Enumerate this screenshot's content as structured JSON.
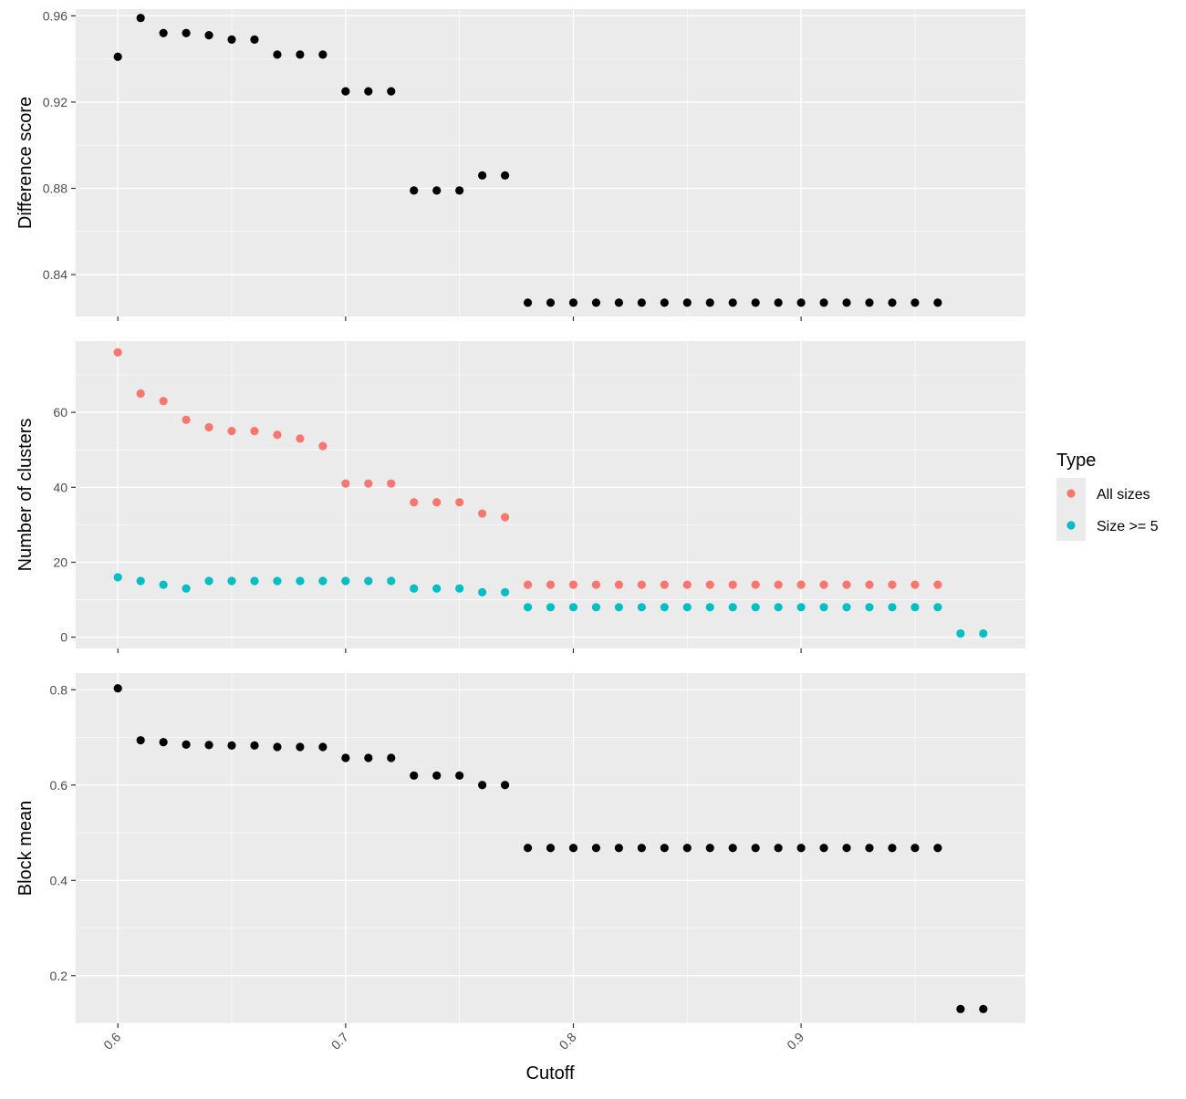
{
  "chart_data": [
    {
      "type": "scatter",
      "panel": "top",
      "ylabel": "Difference score",
      "xlabel": "",
      "x_ticks": [
        0.6,
        0.7,
        0.8,
        0.9
      ],
      "x_tick_labels": [
        "0.6",
        "0.7",
        "0.8",
        "0.9"
      ],
      "show_x_tick_labels": false,
      "xlim": [
        0.5815,
        0.9985
      ],
      "ylim": [
        0.8206,
        0.9631
      ],
      "y_ticks": [
        0.84,
        0.88,
        0.92,
        0.96
      ],
      "y_tick_labels": [
        "0.84",
        "0.88",
        "0.92",
        "0.96"
      ],
      "grid": true,
      "series": [
        {
          "color": "#000000",
          "x": [
            0.6,
            0.61,
            0.62,
            0.63,
            0.64,
            0.65,
            0.66,
            0.67,
            0.68,
            0.69,
            0.7,
            0.71,
            0.72,
            0.73,
            0.74,
            0.75,
            0.76,
            0.77,
            0.78,
            0.79,
            0.8,
            0.81,
            0.82,
            0.83,
            0.84,
            0.85,
            0.86,
            0.87,
            0.88,
            0.89,
            0.9,
            0.91,
            0.92,
            0.93,
            0.94,
            0.95,
            0.96
          ],
          "y": [
            0.941,
            0.959,
            0.952,
            0.952,
            0.951,
            0.949,
            0.949,
            0.942,
            0.942,
            0.942,
            0.925,
            0.925,
            0.925,
            0.879,
            0.879,
            0.879,
            0.886,
            0.886,
            0.827,
            0.827,
            0.827,
            0.827,
            0.827,
            0.827,
            0.827,
            0.827,
            0.827,
            0.827,
            0.827,
            0.827,
            0.827,
            0.827,
            0.827,
            0.827,
            0.827,
            0.827,
            0.827
          ]
        }
      ]
    },
    {
      "type": "scatter",
      "panel": "middle",
      "ylabel": "Number of clusters",
      "xlabel": "",
      "x_ticks": [
        0.6,
        0.7,
        0.8,
        0.9
      ],
      "x_tick_labels": [
        "0.6",
        "0.7",
        "0.8",
        "0.9"
      ],
      "show_x_tick_labels": false,
      "xlim": [
        0.5815,
        0.9985
      ],
      "ylim": [
        -3,
        79
      ],
      "y_ticks": [
        0,
        20,
        40,
        60
      ],
      "y_tick_labels": [
        "0",
        "20",
        "40",
        "60"
      ],
      "grid": true,
      "series": [
        {
          "name": "All sizes",
          "color": "#F8766D",
          "x": [
            0.6,
            0.61,
            0.62,
            0.63,
            0.64,
            0.65,
            0.66,
            0.67,
            0.68,
            0.69,
            0.7,
            0.71,
            0.72,
            0.73,
            0.74,
            0.75,
            0.76,
            0.77,
            0.78,
            0.79,
            0.8,
            0.81,
            0.82,
            0.83,
            0.84,
            0.85,
            0.86,
            0.87,
            0.88,
            0.89,
            0.9,
            0.91,
            0.92,
            0.93,
            0.94,
            0.95,
            0.96
          ],
          "y": [
            76,
            65,
            63,
            58,
            56,
            55,
            55,
            54,
            53,
            51,
            41,
            41,
            41,
            36,
            36,
            36,
            33,
            32,
            14,
            14,
            14,
            14,
            14,
            14,
            14,
            14,
            14,
            14,
            14,
            14,
            14,
            14,
            14,
            14,
            14,
            14,
            14
          ]
        },
        {
          "name": "Size >= 5",
          "color": "#00BFC4",
          "x": [
            0.6,
            0.61,
            0.62,
            0.63,
            0.64,
            0.65,
            0.66,
            0.67,
            0.68,
            0.69,
            0.7,
            0.71,
            0.72,
            0.73,
            0.74,
            0.75,
            0.76,
            0.77,
            0.78,
            0.79,
            0.8,
            0.81,
            0.82,
            0.83,
            0.84,
            0.85,
            0.86,
            0.87,
            0.88,
            0.89,
            0.9,
            0.91,
            0.92,
            0.93,
            0.94,
            0.95,
            0.96,
            0.97,
            0.98
          ],
          "y": [
            16,
            15,
            14,
            13,
            15,
            15,
            15,
            15,
            15,
            15,
            15,
            15,
            15,
            13,
            13,
            13,
            12,
            12,
            8,
            8,
            8,
            8,
            8,
            8,
            8,
            8,
            8,
            8,
            8,
            8,
            8,
            8,
            8,
            8,
            8,
            8,
            8,
            1,
            1
          ]
        }
      ]
    },
    {
      "type": "scatter",
      "panel": "bottom",
      "ylabel": "Block mean",
      "xlabel": "Cutoff",
      "x_ticks": [
        0.6,
        0.7,
        0.8,
        0.9
      ],
      "x_tick_labels": [
        "0.6",
        "0.7",
        "0.8",
        "0.9"
      ],
      "show_x_tick_labels": true,
      "xlim": [
        0.5815,
        0.9985
      ],
      "ylim": [
        0.1,
        0.835
      ],
      "y_ticks": [
        0.2,
        0.4,
        0.6,
        0.8
      ],
      "y_tick_labels": [
        "0.2",
        "0.4",
        "0.6",
        "0.8"
      ],
      "grid": true,
      "series": [
        {
          "color": "#000000",
          "x": [
            0.6,
            0.61,
            0.62,
            0.63,
            0.64,
            0.65,
            0.66,
            0.67,
            0.68,
            0.69,
            0.7,
            0.71,
            0.72,
            0.73,
            0.74,
            0.75,
            0.76,
            0.77,
            0.78,
            0.79,
            0.8,
            0.81,
            0.82,
            0.83,
            0.84,
            0.85,
            0.86,
            0.87,
            0.88,
            0.89,
            0.9,
            0.91,
            0.92,
            0.93,
            0.94,
            0.95,
            0.96,
            0.97,
            0.98
          ],
          "y": [
            0.803,
            0.694,
            0.69,
            0.685,
            0.684,
            0.683,
            0.683,
            0.68,
            0.68,
            0.68,
            0.657,
            0.657,
            0.657,
            0.62,
            0.62,
            0.62,
            0.6,
            0.6,
            0.468,
            0.468,
            0.468,
            0.468,
            0.468,
            0.468,
            0.468,
            0.468,
            0.468,
            0.468,
            0.468,
            0.468,
            0.468,
            0.468,
            0.468,
            0.468,
            0.468,
            0.468,
            0.468,
            0.13,
            0.13
          ]
        }
      ]
    }
  ],
  "legend": {
    "title": "Type",
    "placement": "right",
    "items": [
      {
        "label": "All sizes",
        "color": "#F8766D"
      },
      {
        "label": "Size >= 5",
        "color": "#00BFC4"
      }
    ]
  },
  "x_axis_title": "Cutoff",
  "colors": {
    "panel_background": "#EBEBEB",
    "grid_major": "#FFFFFF",
    "tick_text": "#4D4D4D",
    "axis_title": "#000000"
  }
}
